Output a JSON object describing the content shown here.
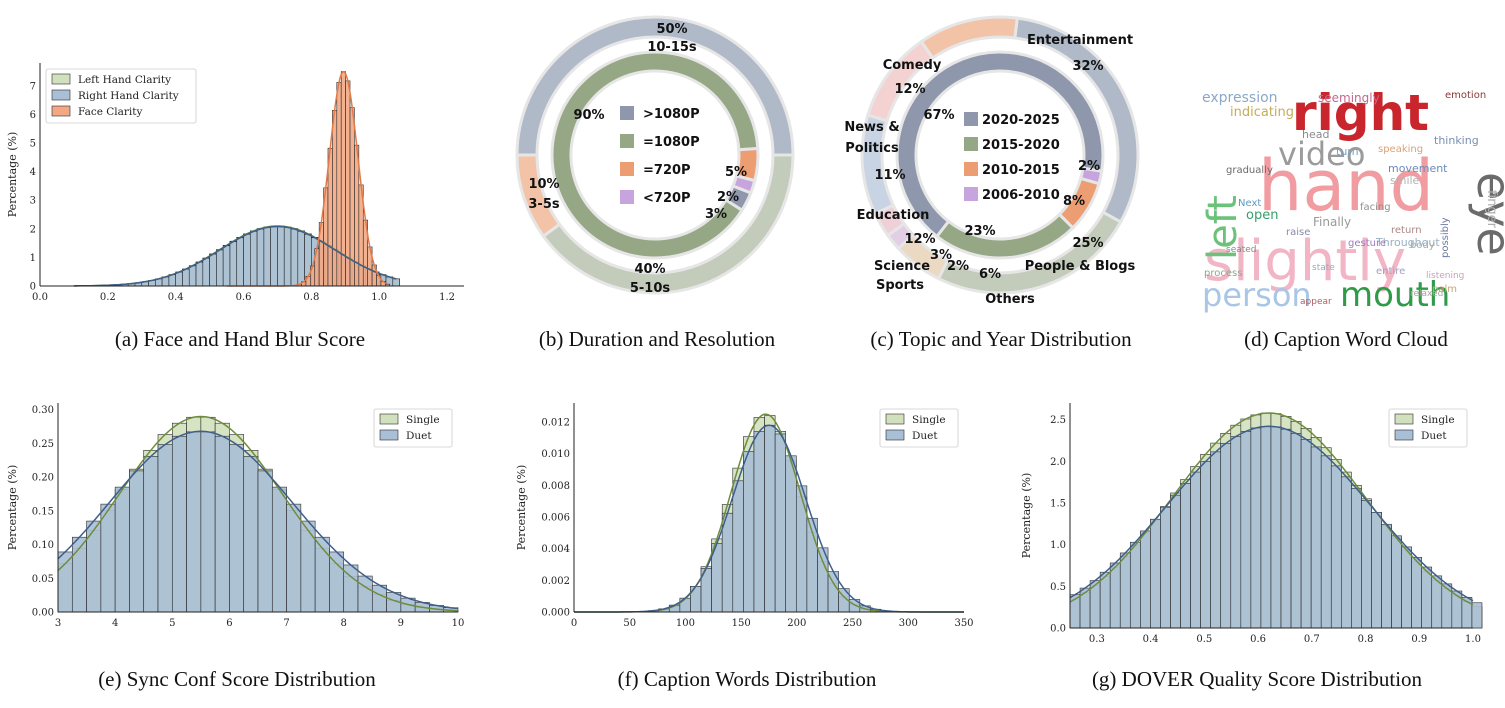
{
  "captions": {
    "a": "(a) Face and Hand Blur Score",
    "b": "(b) Duration and Resolution",
    "c": "(c) Topic and Year Distribution",
    "d": "(d) Caption Word Cloud",
    "e": "(e) Sync Conf Score Distribution",
    "f": "(f) Caption Words Distribution",
    "g": "(g) DOVER Quality Score Distribution"
  },
  "colors": {
    "green": "#d2e1bd",
    "blue": "#a9bfd6",
    "orange": "#f2a884",
    "kde_green": "#6f8c3c",
    "kde_blue": "#3e5f8a",
    "kde_orange": "#e07a4a"
  },
  "chart_data": [
    {
      "id": "a",
      "type": "histogram",
      "xlabel": "",
      "ylabel": "Percentage (%)",
      "xlim": [
        0.0,
        1.25
      ],
      "ylim": [
        0,
        7.8
      ],
      "xticks": [
        "0.0",
        "0.2",
        "0.4",
        "0.6",
        "0.8",
        "1.0",
        "1.2"
      ],
      "yticks": [
        "0",
        "1",
        "2",
        "3",
        "4",
        "5",
        "6",
        "7"
      ],
      "legend": "top-left",
      "series": [
        {
          "name": "Left Hand Clarity",
          "color": "green",
          "kind": "gauss",
          "mean": 0.7,
          "sd": 0.17,
          "peak": 2.1,
          "range": [
            0.1,
            1.05
          ],
          "bin": 0.02
        },
        {
          "name": "Right Hand Clarity",
          "color": "blue",
          "kind": "gauss",
          "mean": 0.7,
          "sd": 0.17,
          "peak": 2.08,
          "range": [
            0.1,
            1.05
          ],
          "bin": 0.02
        },
        {
          "name": "Face Clarity",
          "color": "orange",
          "kind": "gauss",
          "mean": 0.895,
          "sd": 0.042,
          "peak": 7.5,
          "range": [
            0.55,
            1.02
          ],
          "bin": 0.013
        }
      ]
    },
    {
      "id": "b",
      "type": "pie",
      "outer": [
        {
          "label": "10-15s",
          "value": 50,
          "color": "#b0b9c8"
        },
        {
          "label": "5-10s",
          "value": 40,
          "color": "#c3ccbb"
        },
        {
          "label": "3-5s",
          "value": 10,
          "color": "#f3c3a8"
        }
      ],
      "outer_labels": [
        {
          "pct": "50%",
          "text": "10-15s"
        },
        {
          "pct": "40%",
          "text": "5-10s"
        },
        {
          "pct": "10%",
          "text": "3-5s"
        }
      ],
      "inner": [
        {
          "label": ">1080P",
          "value": 3,
          "color": "#8e97ab"
        },
        {
          "label": "=1080P",
          "value": 90,
          "color": "#95a784"
        },
        {
          "label": "=720P",
          "value": 5,
          "color": "#ec9e72"
        },
        {
          "label": "<720P",
          "value": 2,
          "color": "#c7a4dd"
        }
      ],
      "inner_pct": [
        "3%",
        "90%",
        "5%",
        "2%"
      ]
    },
    {
      "id": "c",
      "type": "pie",
      "outer": [
        {
          "label": "Entertainment",
          "value": 32,
          "color": "#b0b9c8"
        },
        {
          "label": "People & Blogs",
          "value": 25,
          "color": "#c3ccbb"
        },
        {
          "label": "Others",
          "value": 6,
          "color": "#ecd9c4"
        },
        {
          "label": "Sports",
          "value": 2,
          "color": "#e2cfe6"
        },
        {
          "label": "Science",
          "value": 3,
          "color": "#f0d0d8"
        },
        {
          "label": "Education",
          "value": 12,
          "color": "#c8d3e3"
        },
        {
          "label": "News & Politics",
          "value": 11,
          "color": "#f4d2d2"
        },
        {
          "label": "Comedy",
          "value": 12,
          "color": "#f3c3a8"
        }
      ],
      "outer_labels": [
        {
          "name": "Entertainment",
          "pct": "32%"
        },
        {
          "name": "People & Blogs",
          "pct": "25%"
        },
        {
          "name": "Others",
          "pct": "6%"
        },
        {
          "name": "Sports",
          "pct": "2%"
        },
        {
          "name": "Science",
          "pct": "3%"
        },
        {
          "name": "Education",
          "pct": "12%"
        },
        {
          "name": "News &",
          "name2": "Politics",
          "pct": "11%"
        },
        {
          "name": "Comedy",
          "pct": "12%"
        }
      ],
      "inner": [
        {
          "label": "2006-2010",
          "value": 2,
          "color": "#c7a4dd"
        },
        {
          "label": "2010-2015",
          "value": 8,
          "color": "#ec9e72"
        },
        {
          "label": "2015-2020",
          "value": 23,
          "color": "#95a784"
        },
        {
          "label": "2020-2025",
          "value": 67,
          "color": "#8e97ab"
        }
      ],
      "inner_pct": [
        "2%",
        "8%",
        "23%",
        "67%"
      ],
      "legend_order": [
        "2020-2025",
        "2015-2020",
        "2010-2015",
        "2006-2010"
      ]
    },
    {
      "id": "e",
      "type": "histogram",
      "xlabel": "",
      "ylabel": "Percentage (%)",
      "xlim": [
        3,
        10
      ],
      "ylim": [
        0,
        0.31
      ],
      "xticks": [
        "3",
        "4",
        "5",
        "6",
        "7",
        "8",
        "9",
        "10"
      ],
      "yticks": [
        "0.00",
        "0.05",
        "0.10",
        "0.15",
        "0.20",
        "0.25",
        "0.30"
      ],
      "legend": "top-right",
      "series": [
        {
          "name": "Single",
          "color": "green",
          "kind": "gauss",
          "mean": 5.5,
          "sd": 1.42,
          "peak": 0.29,
          "range": [
            3,
            10
          ],
          "bin": 0.25
        },
        {
          "name": "Duet",
          "color": "blue",
          "kind": "gauss",
          "mean": 5.5,
          "sd": 1.6,
          "peak": 0.268,
          "range": [
            3,
            10
          ],
          "bin": 0.25
        }
      ]
    },
    {
      "id": "f",
      "type": "histogram",
      "xlabel": "",
      "ylabel": "Percentage (%)",
      "xlim": [
        0,
        350
      ],
      "ylim": [
        0,
        0.0132
      ],
      "xticks": [
        "0",
        "50",
        "100",
        "150",
        "200",
        "250",
        "300",
        "350"
      ],
      "yticks": [
        "0.000",
        "0.002",
        "0.004",
        "0.006",
        "0.008",
        "0.010",
        "0.012"
      ],
      "legend": "top-right",
      "series": [
        {
          "name": "Single",
          "color": "green",
          "kind": "gauss",
          "mean": 172,
          "sd": 31,
          "peak": 0.0125,
          "range": [
            0,
            350
          ],
          "bin": 9.5
        },
        {
          "name": "Duet",
          "color": "blue",
          "kind": "gauss",
          "mean": 175,
          "sd": 33,
          "peak": 0.0118,
          "range": [
            0,
            350
          ],
          "bin": 9.5
        }
      ]
    },
    {
      "id": "g",
      "type": "histogram",
      "xlabel": "",
      "ylabel": "Percentage (%)",
      "xlim": [
        0.25,
        1.0
      ],
      "ylim": [
        0,
        2.7
      ],
      "xticks": [
        "0.3",
        "0.4",
        "0.5",
        "0.6",
        "0.7",
        "0.8",
        "0.9",
        "1.0"
      ],
      "yticks": [
        "0.0",
        "0.5",
        "1.0",
        "1.5",
        "2.0",
        "2.5"
      ],
      "legend": "top-right",
      "series": [
        {
          "name": "Single",
          "color": "green",
          "kind": "gauss",
          "mean": 0.62,
          "sd": 0.18,
          "peak": 2.58,
          "range": [
            0.25,
            1.0
          ],
          "bin": 0.0187
        },
        {
          "name": "Duet",
          "color": "blue",
          "kind": "gauss",
          "mean": 0.62,
          "sd": 0.19,
          "peak": 2.42,
          "range": [
            0.25,
            1.0
          ],
          "bin": 0.0187
        }
      ]
    }
  ],
  "word_cloud": [
    {
      "w": "right",
      "color": "#c9252c",
      "size": 50,
      "bold": true
    },
    {
      "w": "hand",
      "color": "#f19ca1",
      "size": 70,
      "bold": false
    },
    {
      "w": "slightly",
      "color": "#f2b5c6",
      "size": 56,
      "bold": false
    },
    {
      "w": "left",
      "color": "#6cc27a",
      "size": 40,
      "bold": false
    },
    {
      "w": "video",
      "color": "#9b9b9b",
      "size": 32,
      "bold": false
    },
    {
      "w": "eye",
      "color": "#6b6b6b",
      "size": 46,
      "bold": false
    },
    {
      "w": "person",
      "color": "#a9c6e6",
      "size": 32,
      "bold": false
    },
    {
      "w": "mouth",
      "color": "#2f9a48",
      "size": 34,
      "bold": false
    },
    {
      "w": "expression",
      "color": "#8aa8c9",
      "size": 14,
      "bold": false
    },
    {
      "w": "indicating",
      "color": "#c5ad55",
      "size": 13,
      "bold": false
    },
    {
      "w": "seemingly",
      "color": "#c26a8f",
      "size": 12,
      "bold": false
    },
    {
      "w": "emotion",
      "color": "#8a3a3a",
      "size": 10,
      "bold": false
    },
    {
      "w": "thinking",
      "color": "#7a8fb0",
      "size": 11,
      "bold": false
    },
    {
      "w": "open",
      "color": "#35a06a",
      "size": 13,
      "bold": false
    },
    {
      "w": "Throughout",
      "color": "#9ab0c2",
      "size": 11,
      "bold": false
    },
    {
      "w": "Finally",
      "color": "#999999",
      "size": 12,
      "bold": false
    },
    {
      "w": "gesture",
      "color": "#9b7ac2",
      "size": 10,
      "bold": false
    },
    {
      "w": "movement",
      "color": "#6a8ab8",
      "size": 11,
      "bold": false
    },
    {
      "w": "smile",
      "color": "#b2b2b2",
      "size": 11,
      "bold": false
    },
    {
      "w": "speaking",
      "color": "#d9a27a",
      "size": 10,
      "bold": false
    },
    {
      "w": "gradually",
      "color": "#6a6a6a",
      "size": 10,
      "bold": false
    },
    {
      "w": "Next",
      "color": "#5a9bc2",
      "size": 10,
      "bold": false
    },
    {
      "w": "raise",
      "color": "#8888aa",
      "size": 10,
      "bold": false
    },
    {
      "w": "return",
      "color": "#aa8888",
      "size": 10,
      "bold": false
    },
    {
      "w": "process",
      "color": "#88aa88",
      "size": 10,
      "bold": false
    },
    {
      "w": "state",
      "color": "#9ab",
      "size": 9,
      "bold": false
    },
    {
      "w": "listening",
      "color": "#c9a0c0",
      "size": 9,
      "bold": false
    },
    {
      "w": "palm",
      "color": "#d0a070",
      "size": 10,
      "bold": false
    },
    {
      "w": "appear",
      "color": "#b85a5a",
      "size": 9,
      "bold": false
    },
    {
      "w": "head",
      "color": "#8a8a8a",
      "size": 11,
      "bold": false
    },
    {
      "w": "turn",
      "color": "#7aa0c0",
      "size": 11,
      "bold": false
    },
    {
      "w": "finger",
      "color": "#b0b0b0",
      "size": 13,
      "bold": false
    },
    {
      "w": "possibly",
      "color": "#6a7aa0",
      "size": 10,
      "bold": false
    },
    {
      "w": "seated",
      "color": "#888888",
      "size": 9,
      "bold": false
    },
    {
      "w": "entire",
      "color": "#a0a0c0",
      "size": 10,
      "bold": false
    },
    {
      "w": "relaxed",
      "color": "#b0a0a0",
      "size": 9,
      "bold": false
    },
    {
      "w": "facing",
      "color": "#909090",
      "size": 10,
      "bold": false
    },
    {
      "w": "body",
      "color": "#a0b0a0",
      "size": 10,
      "bold": false
    }
  ]
}
